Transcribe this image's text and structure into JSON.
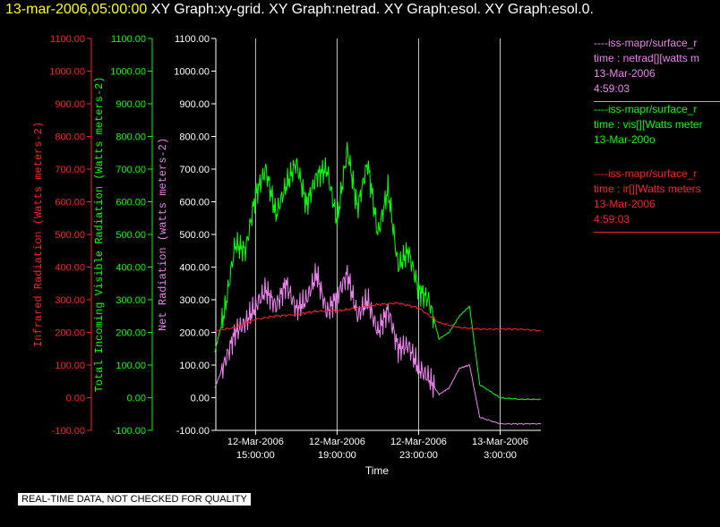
{
  "header": {
    "timestamp": "13-mar-2006,05:00:00",
    "titles": "XY Graph:xy-grid.  XY Graph:netrad.  XY Graph:esol.  XY Graph:esol.0."
  },
  "legend": [
    {
      "lines": [
        "----iss-mapr/surface_r",
        "time : netrad[][watts m",
        "13-Mar-2006",
        "4:59:03"
      ],
      "color": "#ee82ee"
    },
    {
      "lines": [
        "----iss-mapr/surface_r",
        "time : vis[][Watts meter",
        "13-Mar-200o"
      ],
      "color": "#00ff00"
    },
    {
      "lines": [
        "----iss-mapr/surface_r",
        "time : ir[][Watts meters",
        "13-Mar-2006",
        "4:59:03"
      ],
      "color": "#ff2020"
    }
  ],
  "footer": {
    "qc_note": "REAL-TIME DATA, NOT CHECKED FOR QUALITY"
  },
  "chart_data": {
    "type": "line",
    "xlabel": "Time",
    "x_ticks": [
      {
        "date": "12-Mar-2006",
        "time": "15:00:00"
      },
      {
        "date": "12-Mar-2006",
        "time": "19:00:00"
      },
      {
        "date": "12-Mar-2006",
        "time": "23:00:00"
      },
      {
        "date": "13-Mar-2006",
        "time": "3:00:00"
      }
    ],
    "xlim_hours": [
      13.05,
      5.0
    ],
    "ylim": [
      -100,
      1100
    ],
    "y_ticks": [
      "1100.00",
      "1000.00",
      "900.00",
      "800.00",
      "700.00",
      "600.00",
      "500.00",
      "400.00",
      "300.00",
      "200.00",
      "100.00",
      "0.00",
      "-100.00"
    ],
    "grid_x": true,
    "axes": [
      {
        "label": "Infrared Radiation (Watts meters-2)",
        "color": "#ff2020"
      },
      {
        "label": "Total Incoming Visible Radiation (Watts meters-2)",
        "color": "#00ff00"
      },
      {
        "label": "Net Radiation (watts meters-2)",
        "color": "#ee82ee"
      }
    ],
    "series": [
      {
        "color": "#00ff00",
        "x": [
          "12-Mar-2006 13:00",
          "12-Mar-2006 13:30",
          "12-Mar-2006 14:00",
          "12-Mar-2006 14:30",
          "12-Mar-2006 15:00",
          "12-Mar-2006 15:30",
          "12-Mar-2006 16:00",
          "12-Mar-2006 16:30",
          "12-Mar-2006 17:00",
          "12-Mar-2006 17:30",
          "12-Mar-2006 18:00",
          "12-Mar-2006 18:30",
          "12-Mar-2006 19:00",
          "12-Mar-2006 19:30",
          "12-Mar-2006 20:00",
          "12-Mar-2006 20:30",
          "12-Mar-2006 21:00",
          "12-Mar-2006 21:30",
          "12-Mar-2006 22:00",
          "12-Mar-2006 22:30",
          "12-Mar-2006 23:00",
          "12-Mar-2006 23:30",
          "13-Mar-2006 00:00",
          "13-Mar-2006 00:30",
          "13-Mar-2006 01:00",
          "13-Mar-2006 01:30",
          "13-Mar-2006 02:00",
          "13-Mar-2006 03:00",
          "13-Mar-2006 04:00",
          "13-Mar-2006 05:00"
        ],
        "values": [
          140,
          270,
          470,
          450,
          620,
          700,
          560,
          650,
          720,
          590,
          680,
          700,
          540,
          760,
          580,
          720,
          500,
          640,
          400,
          450,
          330,
          300,
          180,
          200,
          250,
          280,
          40,
          0,
          -5,
          -5
        ]
      },
      {
        "color": "#ee82ee",
        "x": [
          "12-Mar-2006 13:00",
          "12-Mar-2006 13:30",
          "12-Mar-2006 14:00",
          "12-Mar-2006 14:30",
          "12-Mar-2006 15:00",
          "12-Mar-2006 15:30",
          "12-Mar-2006 16:00",
          "12-Mar-2006 16:30",
          "12-Mar-2006 17:00",
          "12-Mar-2006 17:30",
          "12-Mar-2006 18:00",
          "12-Mar-2006 18:30",
          "12-Mar-2006 19:00",
          "12-Mar-2006 19:30",
          "12-Mar-2006 20:00",
          "12-Mar-2006 20:30",
          "12-Mar-2006 21:00",
          "12-Mar-2006 21:30",
          "12-Mar-2006 22:00",
          "12-Mar-2006 22:30",
          "12-Mar-2006 23:00",
          "12-Mar-2006 23:30",
          "13-Mar-2006 00:00",
          "13-Mar-2006 00:30",
          "13-Mar-2006 01:00",
          "13-Mar-2006 01:30",
          "13-Mar-2006 02:00",
          "13-Mar-2006 03:00",
          "13-Mar-2006 04:00",
          "13-Mar-2006 05:00"
        ],
        "values": [
          30,
          110,
          200,
          230,
          280,
          330,
          280,
          350,
          270,
          300,
          380,
          260,
          310,
          380,
          250,
          300,
          200,
          270,
          150,
          160,
          90,
          60,
          10,
          30,
          90,
          100,
          -60,
          -80,
          -80,
          -80
        ]
      },
      {
        "color": "#ff2020",
        "x": [
          "12-Mar-2006 13:00",
          "12-Mar-2006 14:00",
          "12-Mar-2006 15:00",
          "12-Mar-2006 16:00",
          "12-Mar-2006 17:00",
          "12-Mar-2006 18:00",
          "12-Mar-2006 19:00",
          "12-Mar-2006 20:00",
          "12-Mar-2006 21:00",
          "12-Mar-2006 22:00",
          "12-Mar-2006 23:00",
          "13-Mar-2006 00:00",
          "13-Mar-2006 01:00",
          "13-Mar-2006 02:00",
          "13-Mar-2006 03:00",
          "13-Mar-2006 04:00",
          "13-Mar-2006 05:00"
        ],
        "values": [
          205,
          215,
          240,
          250,
          255,
          265,
          265,
          275,
          285,
          290,
          275,
          230,
          215,
          210,
          210,
          210,
          205
        ]
      }
    ]
  }
}
